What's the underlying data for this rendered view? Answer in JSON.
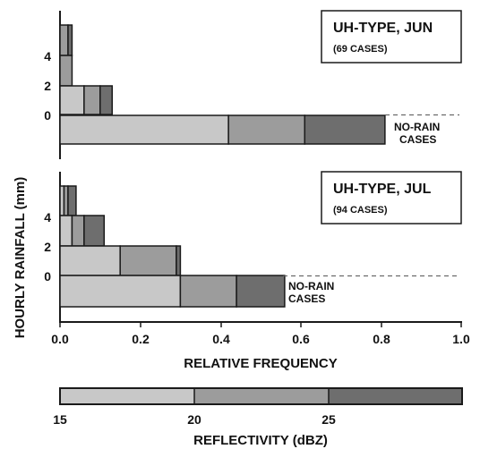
{
  "colors": {
    "light": "#c8c8c8",
    "medium": "#9c9c9c",
    "dark": "#6e6e6e",
    "stroke": "#1a1a1a"
  },
  "chart_data": {
    "type": "bar",
    "orientation": "horizontal-stacked",
    "xlabel": "RELATIVE FREQUENCY",
    "ylabel": "HOURLY RAINFALL (mm)",
    "xlim": [
      0,
      1.0
    ],
    "x_ticks": [
      "0.0",
      "0.2",
      "0.4",
      "0.6",
      "0.8",
      "1.0"
    ],
    "y_ticks": [
      "4",
      "2",
      "0"
    ],
    "no_rain_label": [
      "NO-RAIN",
      "CASES"
    ],
    "colorbar": {
      "title": "REFLECTIVITY (dBZ)",
      "bounds": [
        15,
        20,
        25,
        30
      ],
      "tick_labels": [
        "15",
        "20",
        "25"
      ]
    },
    "panels": [
      {
        "title": "UH-TYPE, JUN",
        "subtitle": "(69 CASES)",
        "rows": [
          {
            "bin": "4-6 mm",
            "segments": [
              0.0,
              0.02,
              0.03
            ]
          },
          {
            "bin": "2-4 mm",
            "segments": [
              0.0,
              0.03,
              0.03
            ]
          },
          {
            "bin": "0-2 mm",
            "segments": [
              0.06,
              0.1,
              0.13
            ]
          },
          {
            "bin": "no-rain",
            "segments": [
              0.42,
              0.61,
              0.81
            ]
          }
        ]
      },
      {
        "title": "UH-TYPE, JUL",
        "subtitle": "(94 CASES)",
        "rows": [
          {
            "bin": "4-6 mm",
            "segments": [
              0.01,
              0.02,
              0.04
            ]
          },
          {
            "bin": "2-4 mm",
            "segments": [
              0.03,
              0.06,
              0.11
            ]
          },
          {
            "bin": "0-2 mm",
            "segments": [
              0.15,
              0.29,
              0.3
            ]
          },
          {
            "bin": "no-rain",
            "segments": [
              0.3,
              0.44,
              0.56
            ]
          }
        ]
      }
    ]
  }
}
